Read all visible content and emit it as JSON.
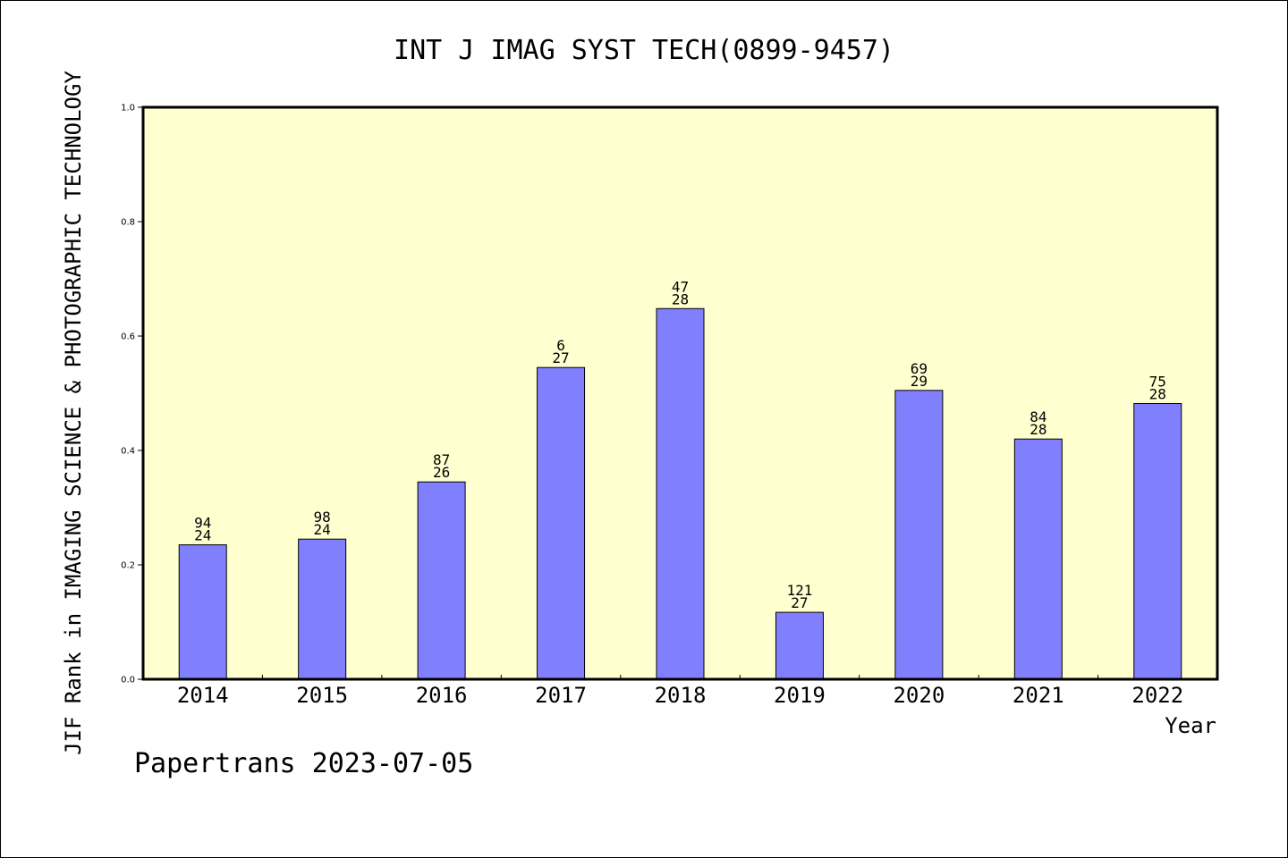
{
  "chart_data": {
    "type": "bar",
    "title": "INT J IMAG SYST TECH(0899-9457)",
    "xlabel": "Year",
    "ylabel": "JIF Rank in IMAGING SCIENCE & PHOTOGRAPHIC TECHNOLOGY",
    "ylim": [
      0,
      1.0
    ],
    "y_ticks": [
      "0.0",
      "0.2",
      "0.4",
      "0.6",
      "0.8",
      "1.0"
    ],
    "categories": [
      "2014",
      "2015",
      "2016",
      "2017",
      "2018",
      "2019",
      "2020",
      "2021",
      "2022"
    ],
    "values": [
      0.235,
      0.245,
      0.345,
      0.545,
      0.648,
      0.117,
      0.505,
      0.42,
      0.482
    ],
    "label_top": [
      "94",
      "98",
      "87",
      "6",
      "47",
      "121",
      "69",
      "84",
      "75"
    ],
    "label_bottom": [
      "24",
      "24",
      "26",
      "27",
      "28",
      "27",
      "29",
      "28",
      "28"
    ],
    "grid": false,
    "colors": {
      "bar": "#8080ff",
      "plot_bg": "#ffffd0",
      "axis": "#000000"
    }
  },
  "footer": "Papertrans 2023-07-05"
}
